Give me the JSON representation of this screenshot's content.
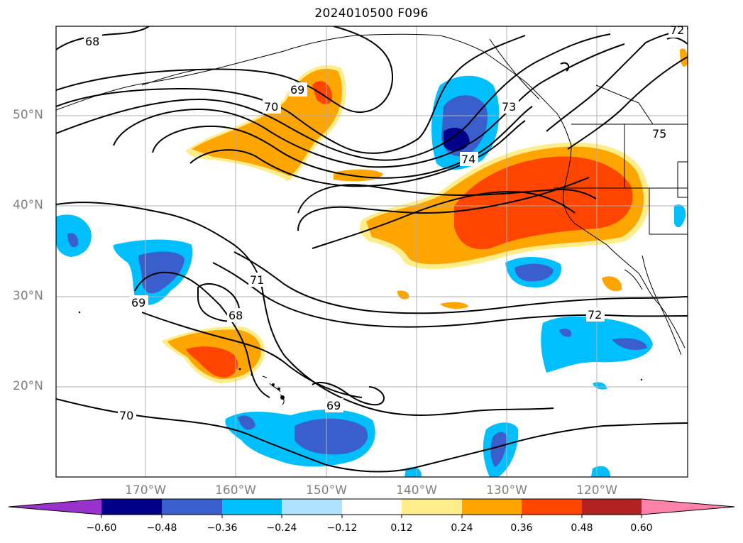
{
  "title": "2024010500 F096",
  "map": {
    "lat_labels": [
      "50°N",
      "40°N",
      "30°N",
      "20°N"
    ],
    "lon_labels": [
      "170°W",
      "160°W",
      "150°W",
      "140°W",
      "130°W",
      "120°W"
    ],
    "contour_labels": [
      "68",
      "69",
      "70",
      "73",
      "74",
      "75",
      "71",
      "69",
      "68",
      "72",
      "69",
      "70",
      "72"
    ]
  },
  "colorbar": {
    "ticks": [
      "−0.60",
      "−0.48",
      "−0.36",
      "−0.24",
      "−0.12",
      "0.12",
      "0.24",
      "0.36",
      "0.48",
      "0.60"
    ],
    "colors": [
      "#9932cc",
      "#00008b",
      "#3a5fcd",
      "#00bfff",
      "#b0e2ff",
      "#ffffff",
      "#ffec8b",
      "#ffa500",
      "#ff4500",
      "#b22222",
      "#ff82ab"
    ]
  }
}
